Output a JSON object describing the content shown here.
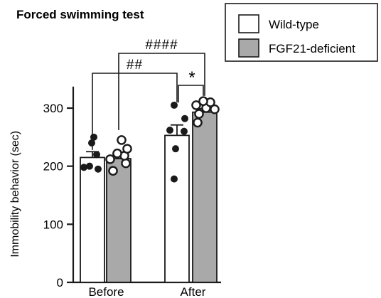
{
  "chart_data": {
    "type": "bar",
    "title": "Forced swimming test",
    "ylabel": "Immobility behavior (sec)",
    "xlabel": "",
    "ylim": [
      0,
      350
    ],
    "yticks": [
      "0",
      "100",
      "200",
      "300"
    ],
    "categories": [
      "Before",
      "After"
    ],
    "series": [
      {
        "name": "Wild-type",
        "color": "#ffffff",
        "values": [
          215,
          253
        ],
        "sem": [
          10,
          18
        ],
        "points": [
          [
            198,
            195,
            200,
            220,
            240,
            250
          ],
          [
            178,
            230,
            260,
            262,
            282,
            305
          ]
        ]
      },
      {
        "name": "FGF21-deficient",
        "color": "#a9a9a9",
        "values": [
          213,
          293
        ],
        "sem": [
          8,
          6
        ],
        "points": [
          [
            192,
            205,
            212,
            218,
            222,
            230,
            245
          ],
          [
            275,
            290,
            298,
            300,
            305,
            310,
            312
          ]
        ]
      }
    ],
    "significance": [
      {
        "label": "####",
        "from": "Before",
        "to": "After"
      },
      {
        "label": "##",
        "from": "Before",
        "to": "After"
      },
      {
        "label": "*",
        "from": "Wild-type",
        "to": "FGF21-deficient"
      }
    ],
    "legend_position": "top-right"
  }
}
